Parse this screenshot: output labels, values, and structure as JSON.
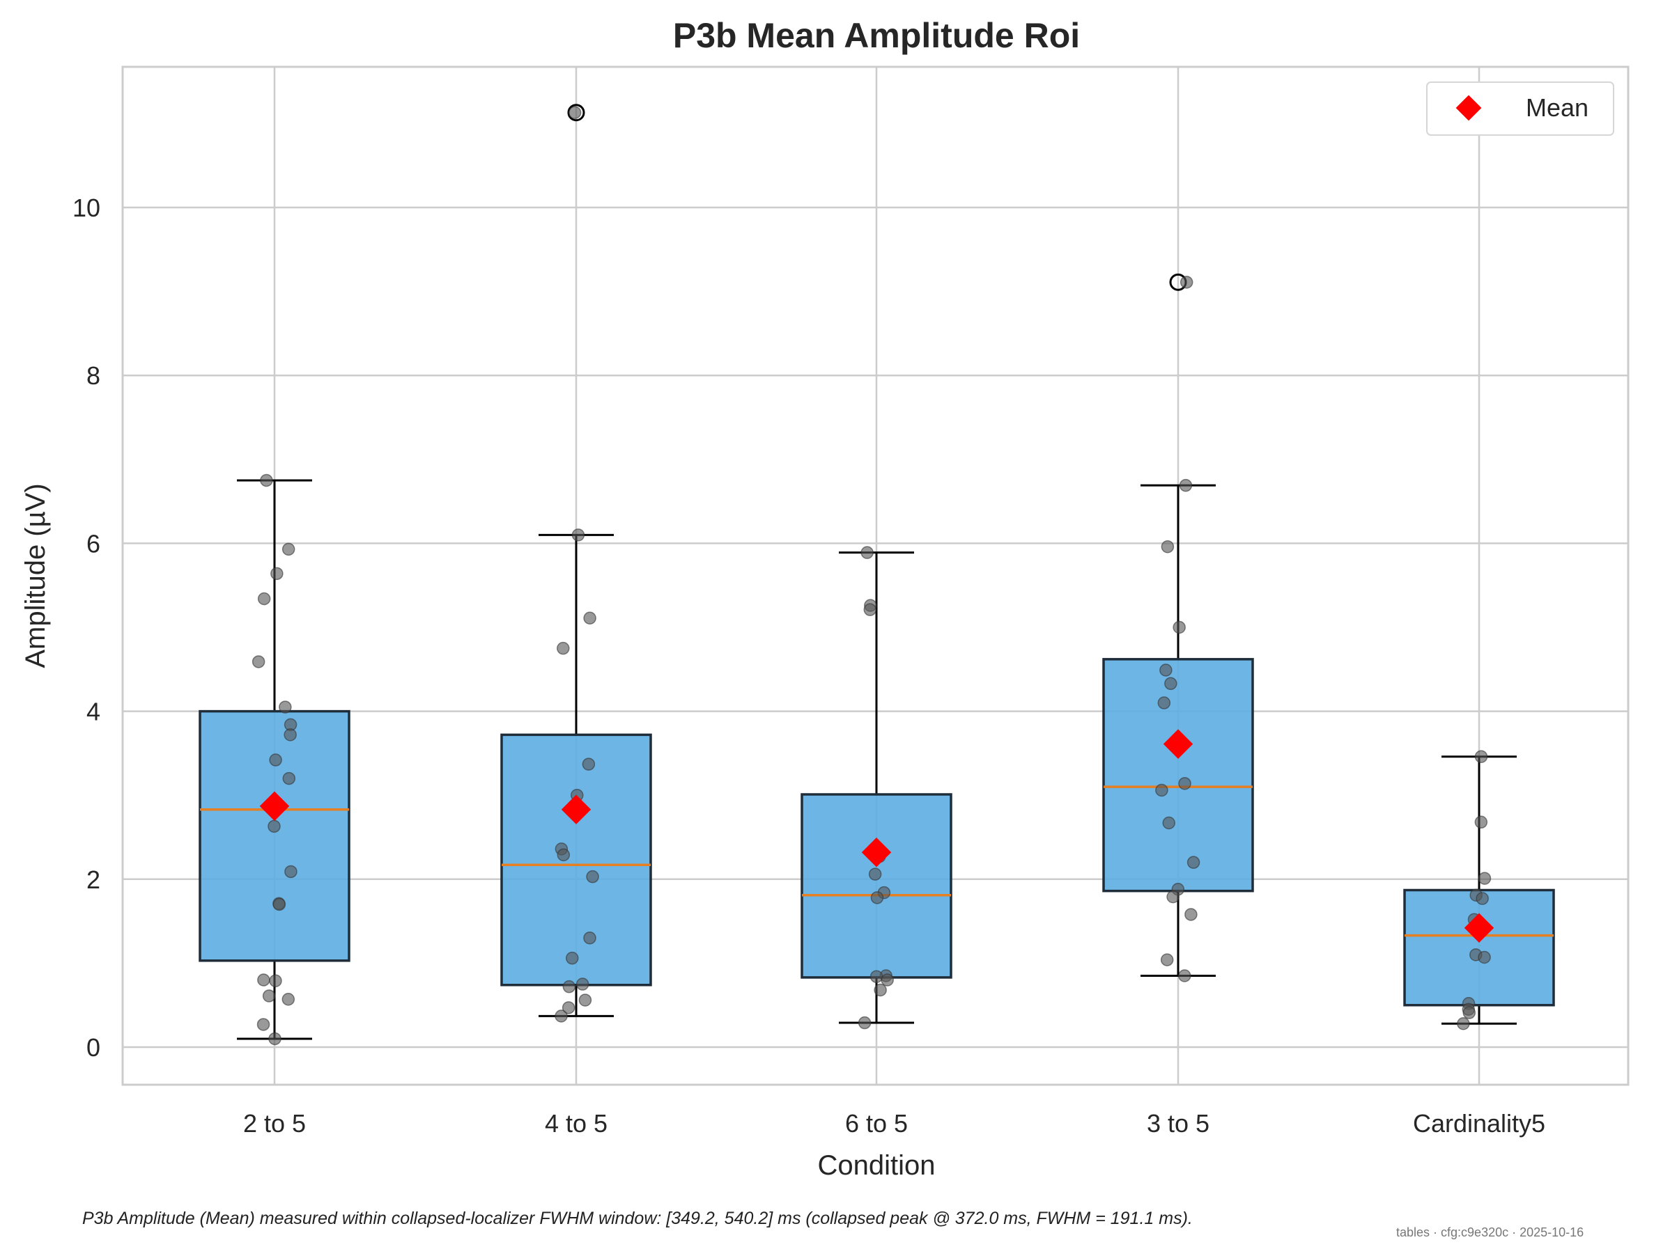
{
  "chart_data": {
    "type": "box",
    "title": "P3b Mean Amplitude Roi",
    "xlabel": "Condition",
    "ylabel": "Amplitude (µV)",
    "ylim": [
      -0.45,
      11.7
    ],
    "yticks": [
      0,
      2,
      4,
      6,
      8,
      10
    ],
    "grid": true,
    "legend": {
      "position": "top-right",
      "entries": [
        "Mean"
      ]
    },
    "colors": {
      "box_fill": "#5dade2",
      "box_edge": "#1f2d3a",
      "median": "#e67e22",
      "mean_marker": "#ff0000",
      "points": "#555555",
      "grid": "#cccccc"
    },
    "categories": [
      "2 to 5",
      "4 to 5",
      "6 to 5",
      "3 to 5",
      "Cardinality5"
    ],
    "boxes": [
      {
        "q1": 1.03,
        "median": 2.83,
        "q3": 4.0,
        "whisker_low": 0.1,
        "whisker_high": 6.75,
        "mean": 2.87,
        "outliers": [],
        "points": [
          6.75,
          5.93,
          5.64,
          5.34,
          4.59,
          4.05,
          3.84,
          3.72,
          3.42,
          3.2,
          2.63,
          2.09,
          1.71,
          1.7,
          0.8,
          0.79,
          0.61,
          0.57,
          0.27,
          0.1
        ]
      },
      {
        "q1": 0.74,
        "median": 2.17,
        "q3": 3.72,
        "whisker_low": 0.37,
        "whisker_high": 6.1,
        "mean": 2.83,
        "outliers": [
          11.13
        ],
        "points": [
          11.13,
          6.1,
          5.11,
          4.75,
          3.37,
          3.0,
          2.36,
          2.29,
          2.03,
          1.3,
          1.06,
          0.75,
          0.72,
          0.56,
          0.47,
          0.37
        ]
      },
      {
        "q1": 0.83,
        "median": 1.81,
        "q3": 3.01,
        "whisker_low": 0.29,
        "whisker_high": 5.89,
        "mean": 2.32,
        "outliers": [],
        "points": [
          5.89,
          5.26,
          5.21,
          2.27,
          2.06,
          1.84,
          1.78,
          0.85,
          0.84,
          0.8,
          0.68,
          0.29
        ]
      },
      {
        "q1": 1.86,
        "median": 3.1,
        "q3": 4.62,
        "whisker_low": 0.85,
        "whisker_high": 6.69,
        "mean": 3.61,
        "outliers": [
          9.11
        ],
        "points": [
          9.11,
          6.69,
          5.96,
          5.0,
          4.49,
          4.33,
          4.1,
          3.14,
          3.06,
          2.67,
          2.2,
          1.88,
          1.79,
          1.58,
          1.04,
          0.85
        ]
      },
      {
        "q1": 0.5,
        "median": 1.33,
        "q3": 1.87,
        "whisker_low": 0.28,
        "whisker_high": 3.46,
        "mean": 1.42,
        "outliers": [],
        "points": [
          3.46,
          2.68,
          2.01,
          1.81,
          1.77,
          1.52,
          1.1,
          1.07,
          0.52,
          0.45,
          0.41,
          0.28
        ]
      }
    ]
  },
  "footer": {
    "caption": "P3b Amplitude (Mean) measured within collapsed-localizer FWHM window: [349.2, 540.2] ms (collapsed peak @ 372.0 ms, FWHM = 191.1 ms).",
    "watermark": "tables · cfg:c9e320c · 2025-10-16"
  }
}
